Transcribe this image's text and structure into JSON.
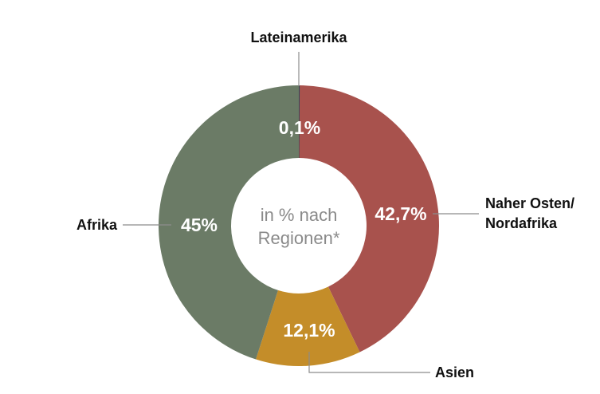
{
  "chart_data": {
    "type": "pie",
    "center_label": [
      "in % nach",
      "Regionen*"
    ],
    "slices": [
      {
        "label": "Lateinamerika",
        "value": 0.1,
        "value_label": "0,1%",
        "color": "#2f4a5c"
      },
      {
        "label": "Naher Osten/ Nordafrika",
        "label_lines": [
          "Naher Osten/",
          "Nordafrika"
        ],
        "value": 42.7,
        "value_label": "42,7%",
        "color": "#a8524d"
      },
      {
        "label": "Asien",
        "value": 12.1,
        "value_label": "12,1%",
        "color": "#c48d29"
      },
      {
        "label": "Afrika",
        "value": 45,
        "value_label": "45%",
        "color": "#6b7b66"
      }
    ]
  }
}
